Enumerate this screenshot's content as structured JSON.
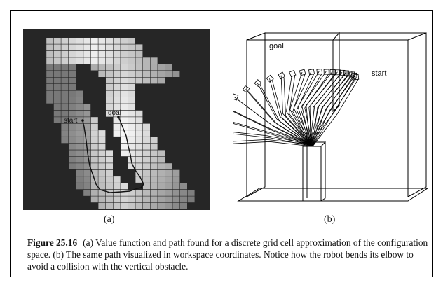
{
  "figure": {
    "panel_a": {
      "sublabel": "(a)",
      "start_label": "start",
      "goal_label": "goal"
    },
    "panel_b": {
      "sublabel": "(b)",
      "start_label": "start",
      "goal_label": "goal"
    },
    "caption": {
      "number": "Figure 25.16",
      "text": "(a) Value function and path found for a discrete grid cell approximation of the configuration space. (b) The same path visualized in workspace coordinates. Notice how the robot bends its elbow to avoid a collision with the vertical obstacle."
    }
  }
}
